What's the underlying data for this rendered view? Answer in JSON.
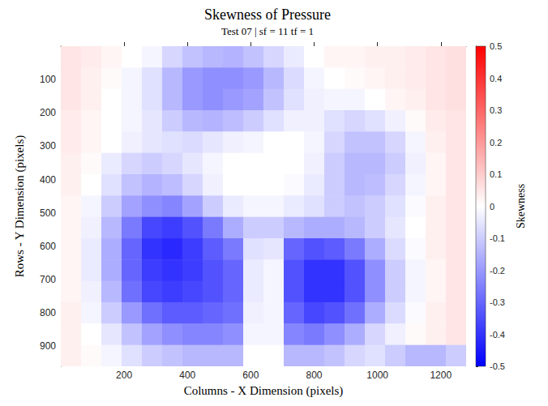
{
  "chart_data": {
    "type": "heatmap",
    "title": "Skewness of Pressure",
    "subtitle": "Test 07 | sf = 11 tf = 1",
    "x_label": "Columns - X Dimension (pixels)",
    "y_label": "Rows - Y Dimension (pixels)",
    "xlim": [
      0,
      1280
    ],
    "ylim": [
      0,
      960
    ],
    "xticks": [
      200,
      400,
      600,
      800,
      1000,
      1200
    ],
    "yticks": [
      100,
      200,
      300,
      400,
      500,
      600,
      700,
      800,
      900
    ],
    "x_bins": [
      0,
      64,
      128,
      192,
      256,
      320,
      384,
      448,
      512,
      576,
      640,
      704,
      768,
      832,
      896,
      960,
      1024,
      1088,
      1152,
      1216,
      1280
    ],
    "y_bins": [
      0,
      64,
      128,
      192,
      256,
      320,
      384,
      448,
      512,
      576,
      640,
      704,
      768,
      832,
      896,
      960
    ],
    "cells": [
      [
        0.05,
        0.04,
        0.02,
        0,
        -0.02,
        -0.08,
        -0.12,
        -0.14,
        -0.15,
        -0.12,
        -0.08,
        -0.04,
        0,
        0.02,
        0.02,
        0.03,
        0.03,
        0.04,
        0.05,
        0.06
      ],
      [
        0.05,
        0.03,
        0.01,
        -0.02,
        -0.06,
        -0.14,
        -0.2,
        -0.22,
        -0.22,
        -0.2,
        -0.14,
        -0.07,
        -0.02,
        0,
        0.01,
        0.02,
        0.03,
        0.04,
        0.05,
        0.06
      ],
      [
        0.05,
        0.03,
        0,
        -0.02,
        -0.06,
        -0.14,
        -0.2,
        -0.22,
        -0.2,
        -0.18,
        -0.12,
        -0.06,
        -0.03,
        -0.02,
        -0.02,
        0,
        0.02,
        0.03,
        0.05,
        0.06
      ],
      [
        0.04,
        0.02,
        0,
        -0.02,
        -0.05,
        -0.1,
        -0.14,
        -0.15,
        -0.13,
        -0.1,
        -0.06,
        -0.03,
        -0.03,
        -0.06,
        -0.08,
        -0.06,
        -0.03,
        0.01,
        0.04,
        0.05
      ],
      [
        0.04,
        0.02,
        0,
        -0.03,
        -0.05,
        -0.06,
        -0.07,
        -0.05,
        -0.03,
        -0.02,
        0,
        0,
        -0.02,
        -0.08,
        -0.12,
        -0.12,
        -0.08,
        -0.02,
        0.03,
        0.05
      ],
      [
        0.03,
        0.01,
        -0.04,
        -0.08,
        -0.1,
        -0.08,
        -0.05,
        -0.02,
        0,
        0,
        0,
        0,
        -0.03,
        -0.1,
        -0.14,
        -0.14,
        -0.1,
        -0.03,
        0.02,
        0.05
      ],
      [
        0.03,
        0,
        -0.06,
        -0.12,
        -0.15,
        -0.13,
        -0.08,
        -0.03,
        0,
        0,
        0,
        -0.01,
        -0.04,
        -0.1,
        -0.14,
        -0.13,
        -0.08,
        -0.02,
        0.02,
        0.05
      ],
      [
        0.02,
        -0.02,
        -0.1,
        -0.18,
        -0.22,
        -0.24,
        -0.18,
        -0.1,
        -0.04,
        -0.02,
        -0.02,
        -0.04,
        -0.06,
        -0.1,
        -0.12,
        -0.1,
        -0.06,
        -0.01,
        0.03,
        0.05
      ],
      [
        0.02,
        -0.03,
        -0.14,
        -0.26,
        -0.36,
        -0.38,
        -0.34,
        -0.26,
        -0.16,
        -0.1,
        -0.1,
        -0.14,
        -0.16,
        -0.16,
        -0.14,
        -0.1,
        -0.05,
        0,
        0.03,
        0.05
      ],
      [
        0.02,
        -0.04,
        -0.16,
        -0.3,
        -0.4,
        -0.42,
        -0.38,
        -0.32,
        -0.26,
        -0.06,
        -0.05,
        -0.3,
        -0.34,
        -0.32,
        -0.26,
        -0.16,
        -0.07,
        -0.01,
        0.03,
        0.05
      ],
      [
        0.02,
        -0.04,
        -0.16,
        -0.3,
        -0.38,
        -0.4,
        -0.38,
        -0.34,
        -0.3,
        -0.04,
        -0.02,
        -0.34,
        -0.4,
        -0.4,
        -0.34,
        -0.22,
        -0.1,
        -0.02,
        0.02,
        0.05
      ],
      [
        0.02,
        -0.03,
        -0.14,
        -0.28,
        -0.36,
        -0.38,
        -0.36,
        -0.34,
        -0.3,
        -0.04,
        -0.02,
        -0.34,
        -0.4,
        -0.4,
        -0.34,
        -0.22,
        -0.1,
        -0.02,
        0.02,
        0.05
      ],
      [
        0.03,
        -0.02,
        -0.1,
        -0.2,
        -0.28,
        -0.32,
        -0.32,
        -0.3,
        -0.28,
        -0.03,
        -0.02,
        -0.3,
        -0.36,
        -0.34,
        -0.28,
        -0.16,
        -0.07,
        -0.01,
        0.03,
        0.05
      ],
      [
        0.03,
        0,
        -0.05,
        -0.12,
        -0.18,
        -0.22,
        -0.24,
        -0.24,
        -0.22,
        -0.02,
        -0.02,
        -0.24,
        -0.26,
        -0.22,
        -0.16,
        -0.08,
        -0.03,
        0.01,
        0.03,
        0.05
      ],
      [
        0.03,
        0.01,
        -0.02,
        -0.06,
        -0.1,
        -0.12,
        -0.14,
        -0.14,
        -0.14,
        0,
        0,
        -0.14,
        -0.14,
        -0.12,
        -0.08,
        -0.06,
        -0.1,
        -0.14,
        -0.14,
        -0.1
      ]
    ],
    "colorbar": {
      "range": [
        -0.5,
        0.5
      ],
      "ticks": [
        -0.5,
        -0.4,
        -0.3,
        -0.2,
        -0.1,
        0,
        0.1,
        0.2,
        0.3,
        0.4,
        0.5
      ],
      "label": "Skewness",
      "colors": [
        "#0000ff",
        "#ffffff",
        "#ff0000"
      ]
    }
  }
}
